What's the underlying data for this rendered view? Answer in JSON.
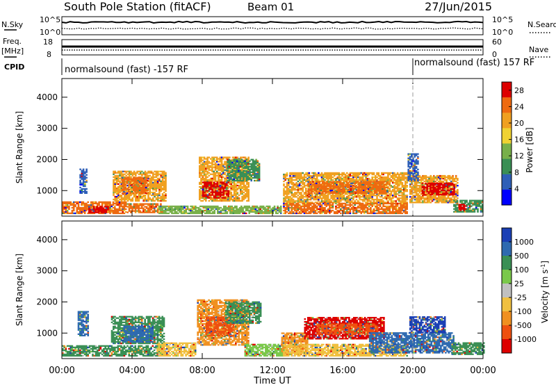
{
  "header": {
    "title": "South Pole Station (fitACF)",
    "beam": "Beam 01",
    "date": "27/Jun/2015"
  },
  "status_panels": {
    "nsky_label": "N.Sky",
    "nsearch_label": "N.Search",
    "noise_top_tick": "10^5",
    "noise_bottom_tick": "10^0",
    "freq_label": "Freq.",
    "freq_unit": "[MHz]",
    "freq_top_tick": "18",
    "freq_bottom_tick": "8",
    "nave_label": "Nave",
    "nave_top_tick": "60",
    "nave_bottom_tick": "0",
    "cpid_label": "CPID",
    "cpid_left": "normalsound (fast) -157 RF",
    "cpid_right": "normalsound (fast) 157 RF",
    "cpid_change_time": "20:00"
  },
  "chart_data": [
    {
      "type": "heatmap",
      "parameter": "Power",
      "ylabel": "Slant Range [km]",
      "xlabel": "",
      "x_ticks": [
        "00:00",
        "04:00",
        "08:00",
        "12:00",
        "16:00",
        "20:00",
        "00:00"
      ],
      "xlim_hours": [
        0,
        24
      ],
      "ylim": [
        180,
        4600
      ],
      "y_ticks": [
        1000,
        2000,
        3000,
        4000
      ],
      "colorbar": {
        "label": "Power [dB]",
        "ticks": [
          4,
          8,
          12,
          16,
          20,
          24,
          28
        ],
        "range": [
          0,
          30
        ],
        "colors": [
          "#0000ff",
          "#2e5fb7",
          "#3a8f55",
          "#78b04a",
          "#f0d232",
          "#f0a020",
          "#ee6a10",
          "#dd0000"
        ]
      },
      "echo_regions": [
        {
          "t0": 0.0,
          "t1": 3.6,
          "r0": 250,
          "r1": 650,
          "color": "#ee6a10"
        },
        {
          "t0": 1.5,
          "t1": 2.6,
          "r0": 280,
          "r1": 470,
          "color": "#dd0000"
        },
        {
          "t0": 2.9,
          "t1": 5.9,
          "r0": 650,
          "r1": 1600,
          "color": "#f0a020"
        },
        {
          "t0": 3.4,
          "t1": 4.9,
          "r0": 900,
          "r1": 1400,
          "color": "#ee6a10"
        },
        {
          "t0": 3.7,
          "t1": 5.6,
          "r0": 280,
          "r1": 560,
          "color": "#ee6a10"
        },
        {
          "t0": 7.8,
          "t1": 10.6,
          "r0": 650,
          "r1": 2050,
          "color": "#f0a020"
        },
        {
          "t0": 8.0,
          "t1": 9.5,
          "r0": 750,
          "r1": 1250,
          "color": "#dd0000"
        },
        {
          "t0": 9.4,
          "t1": 11.2,
          "r0": 1300,
          "r1": 2000,
          "color": "#3a8f55"
        },
        {
          "t0": 5.5,
          "t1": 12.5,
          "r0": 250,
          "r1": 520,
          "color": "#78b04a"
        },
        {
          "t0": 12.6,
          "t1": 19.7,
          "r0": 600,
          "r1": 1550,
          "color": "#f0a020"
        },
        {
          "t0": 14.0,
          "t1": 18.5,
          "r0": 900,
          "r1": 1300,
          "color": "#ee6a10"
        },
        {
          "t0": 12.6,
          "t1": 19.7,
          "r0": 250,
          "r1": 600,
          "color": "#ee6a10"
        },
        {
          "t0": 19.8,
          "t1": 22.5,
          "r0": 600,
          "r1": 1500,
          "color": "#f0a020"
        },
        {
          "t0": 20.5,
          "t1": 22.3,
          "r0": 850,
          "r1": 1250,
          "color": "#dd0000"
        },
        {
          "t0": 22.3,
          "t1": 24.0,
          "r0": 300,
          "r1": 700,
          "color": "#3a8f55"
        },
        {
          "t0": 22.6,
          "t1": 23.0,
          "r0": 350,
          "r1": 550,
          "color": "#dd0000"
        },
        {
          "t0": 1.0,
          "t1": 1.4,
          "r0": 900,
          "r1": 1700,
          "color": "#2e5fb7"
        },
        {
          "t0": 19.7,
          "t1": 20.3,
          "r0": 1300,
          "r1": 2200,
          "color": "#2e5fb7"
        }
      ]
    },
    {
      "type": "heatmap",
      "parameter": "Velocity",
      "ylabel": "Slant Range [km]",
      "xlabel": "Time UT",
      "x_ticks": [
        "00:00",
        "04:00",
        "08:00",
        "12:00",
        "16:00",
        "20:00",
        "00:00"
      ],
      "xlim_hours": [
        0,
        24
      ],
      "ylim": [
        180,
        4600
      ],
      "y_ticks": [
        1000,
        2000,
        3000,
        4000
      ],
      "colorbar": {
        "label": "Velocity [m s^-1]",
        "ticks": [
          1000,
          500,
          100,
          25,
          -25,
          -100,
          -500,
          -1000
        ],
        "colors": [
          "#1a3fb5",
          "#2e6ab0",
          "#3a8f55",
          "#7ac84a",
          "#c0c0c0",
          "#f0c040",
          "#f09020",
          "#ee5010",
          "#dd0000"
        ]
      },
      "echo_regions": [
        {
          "t0": 0.0,
          "t1": 5.8,
          "r0": 250,
          "r1": 600,
          "color": "#3a8f55"
        },
        {
          "t0": 0.9,
          "t1": 1.5,
          "r0": 900,
          "r1": 1700,
          "color": "#2e6ab0"
        },
        {
          "t0": 2.8,
          "t1": 5.8,
          "r0": 650,
          "r1": 1550,
          "color": "#3a8f55"
        },
        {
          "t0": 3.5,
          "t1": 5.2,
          "r0": 700,
          "r1": 1200,
          "color": "#2e6ab0"
        },
        {
          "t0": 5.4,
          "t1": 7.6,
          "r0": 250,
          "r1": 700,
          "color": "#f0c040"
        },
        {
          "t0": 7.7,
          "t1": 10.6,
          "r0": 600,
          "r1": 2050,
          "color": "#f09020"
        },
        {
          "t0": 8.2,
          "t1": 9.8,
          "r0": 900,
          "r1": 1500,
          "color": "#ee5010"
        },
        {
          "t0": 9.3,
          "t1": 11.3,
          "r0": 1300,
          "r1": 2000,
          "color": "#3a8f55"
        },
        {
          "t0": 10.4,
          "t1": 12.6,
          "r0": 250,
          "r1": 650,
          "color": "#7ac84a"
        },
        {
          "t0": 12.5,
          "t1": 14.0,
          "r0": 300,
          "r1": 1000,
          "color": "#f09020"
        },
        {
          "t0": 13.8,
          "t1": 18.3,
          "r0": 800,
          "r1": 1500,
          "color": "#dd0000"
        },
        {
          "t0": 14.5,
          "t1": 18.0,
          "r0": 950,
          "r1": 1300,
          "color": "#ee5010"
        },
        {
          "t0": 12.6,
          "t1": 19.7,
          "r0": 250,
          "r1": 650,
          "color": "#f0c040"
        },
        {
          "t0": 17.5,
          "t1": 22.3,
          "r0": 350,
          "r1": 1000,
          "color": "#2e6ab0"
        },
        {
          "t0": 19.8,
          "t1": 21.8,
          "r0": 1000,
          "r1": 1500,
          "color": "#1a3fb5"
        },
        {
          "t0": 22.2,
          "t1": 24.0,
          "r0": 300,
          "r1": 700,
          "color": "#3a8f55"
        }
      ]
    }
  ]
}
